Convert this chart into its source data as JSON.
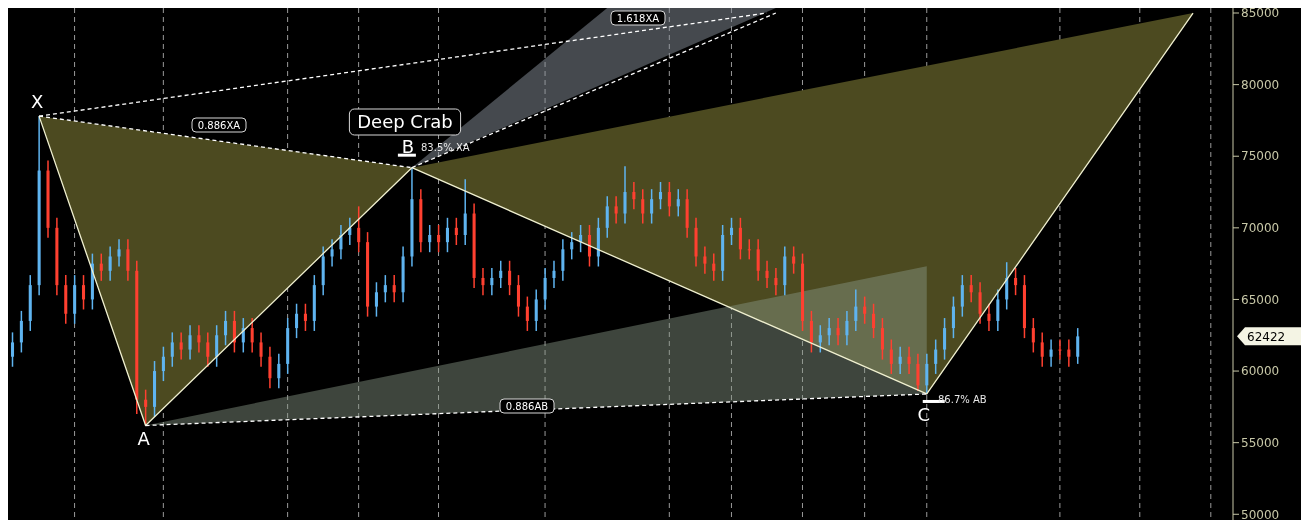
{
  "chart_data": {
    "type": "candlestick",
    "categories": [
      null,
      null,
      null,
      null,
      null,
      null,
      null,
      null,
      null,
      null,
      null,
      null,
      null,
      null,
      null,
      null,
      null,
      null,
      null,
      null,
      null,
      null,
      null,
      null,
      null,
      null,
      null,
      null,
      null,
      null,
      null,
      null,
      null,
      null,
      null,
      null,
      null,
      null,
      null,
      null,
      null,
      null,
      null,
      null,
      null,
      null,
      null,
      null,
      null,
      null,
      null,
      null,
      null,
      null,
      null,
      null,
      null,
      null,
      null,
      null,
      null,
      null,
      null,
      null,
      null,
      null,
      null,
      null,
      null,
      null,
      null,
      null,
      null,
      null,
      null,
      null,
      null,
      null,
      null,
      null,
      null,
      null,
      null,
      null,
      null,
      null,
      null,
      null,
      null,
      null,
      null,
      null,
      null,
      null,
      null,
      null,
      null,
      null,
      null,
      null,
      null,
      null,
      null,
      null,
      null,
      null,
      null,
      null,
      null,
      null,
      null,
      null,
      null,
      null,
      null,
      null,
      null,
      null,
      null,
      null,
      null,
      null,
      null,
      null,
      null,
      null,
      null,
      null,
      null,
      null,
      null,
      null,
      null,
      null,
      null,
      null,
      null,
      null
    ],
    "ohlc": [
      [
        61000,
        62700,
        60300,
        62000
      ],
      [
        62000,
        64200,
        61300,
        63500
      ],
      [
        63500,
        66700,
        62800,
        66000
      ],
      [
        66000,
        77800,
        65300,
        74000
      ],
      [
        74000,
        74700,
        69300,
        70000
      ],
      [
        70000,
        70700,
        65300,
        66000
      ],
      [
        66000,
        66700,
        63300,
        64000
      ],
      [
        64000,
        66700,
        63300,
        66000
      ],
      [
        66000,
        66700,
        64300,
        65000
      ],
      [
        65000,
        68200,
        64300,
        67500
      ],
      [
        67500,
        68200,
        66300,
        67000
      ],
      [
        67000,
        68700,
        66300,
        68000
      ],
      [
        68000,
        69200,
        67300,
        68500
      ],
      [
        68500,
        69200,
        66300,
        67000
      ],
      [
        67000,
        67700,
        57000,
        58000
      ],
      [
        58000,
        58700,
        56200,
        57500
      ],
      [
        57500,
        60700,
        56800,
        60000
      ],
      [
        60000,
        61700,
        59300,
        61000
      ],
      [
        61000,
        62700,
        60300,
        62000
      ],
      [
        62000,
        62700,
        60800,
        61500
      ],
      [
        61500,
        63200,
        60800,
        62500
      ],
      [
        62500,
        63200,
        61300,
        62000
      ],
      [
        62000,
        62700,
        60300,
        61000
      ],
      [
        61000,
        63200,
        60300,
        62500
      ],
      [
        62500,
        64200,
        61800,
        63500
      ],
      [
        63500,
        64200,
        61300,
        62000
      ],
      [
        62000,
        63700,
        61300,
        63000
      ],
      [
        63000,
        63700,
        61300,
        62000
      ],
      [
        62000,
        62700,
        60300,
        61000
      ],
      [
        61000,
        61700,
        58800,
        59500
      ],
      [
        59500,
        61200,
        58800,
        60500
      ],
      [
        60500,
        63700,
        59800,
        63000
      ],
      [
        63000,
        64700,
        62300,
        64000
      ],
      [
        64000,
        64700,
        62800,
        63500
      ],
      [
        63500,
        66700,
        62800,
        66000
      ],
      [
        66000,
        68700,
        65300,
        68000
      ],
      [
        68000,
        69200,
        67300,
        68500
      ],
      [
        68500,
        70200,
        67800,
        69500
      ],
      [
        69500,
        70700,
        68800,
        70000
      ],
      [
        70000,
        71500,
        68300,
        69000
      ],
      [
        69000,
        69700,
        63800,
        64500
      ],
      [
        64500,
        66200,
        63800,
        65500
      ],
      [
        65500,
        66700,
        64800,
        66000
      ],
      [
        66000,
        66700,
        64800,
        65500
      ],
      [
        65500,
        68700,
        64800,
        68000
      ],
      [
        68000,
        74200,
        67300,
        72000
      ],
      [
        72000,
        72700,
        68300,
        69000
      ],
      [
        69000,
        70200,
        68300,
        69500
      ],
      [
        69500,
        70200,
        68300,
        69000
      ],
      [
        69000,
        70700,
        68300,
        70000
      ],
      [
        70000,
        70700,
        68800,
        69500
      ],
      [
        69500,
        73400,
        68800,
        71000
      ],
      [
        71000,
        71700,
        65800,
        66500
      ],
      [
        66500,
        67200,
        65300,
        66000
      ],
      [
        66000,
        67200,
        65300,
        66500
      ],
      [
        66500,
        67700,
        65800,
        67000
      ],
      [
        67000,
        67700,
        65300,
        66000
      ],
      [
        66000,
        66700,
        63800,
        64500
      ],
      [
        64500,
        65200,
        62800,
        63500
      ],
      [
        63500,
        65700,
        62800,
        65000
      ],
      [
        65000,
        67200,
        64300,
        66500
      ],
      [
        66500,
        67700,
        65800,
        67000
      ],
      [
        67000,
        69200,
        66300,
        68500
      ],
      [
        68500,
        69700,
        67800,
        69000
      ],
      [
        69000,
        70200,
        68300,
        69500
      ],
      [
        69500,
        70200,
        67300,
        68000
      ],
      [
        68000,
        70700,
        67300,
        70000
      ],
      [
        70000,
        72200,
        69300,
        71500
      ],
      [
        71500,
        72200,
        70300,
        71000
      ],
      [
        71000,
        74300,
        70300,
        72500
      ],
      [
        72500,
        73200,
        71300,
        72000
      ],
      [
        72000,
        72700,
        70300,
        71000
      ],
      [
        71000,
        72700,
        70300,
        72000
      ],
      [
        72000,
        73200,
        71300,
        72500
      ],
      [
        72500,
        73200,
        70800,
        71500
      ],
      [
        71500,
        72700,
        70800,
        72000
      ],
      [
        72000,
        72700,
        69300,
        70000
      ],
      [
        70000,
        70700,
        67300,
        68000
      ],
      [
        68000,
        68700,
        66800,
        67500
      ],
      [
        67500,
        68200,
        66300,
        67000
      ],
      [
        67000,
        70200,
        66300,
        69500
      ],
      [
        69500,
        70700,
        68800,
        70000
      ],
      [
        70000,
        70700,
        67800,
        68500
      ],
      [
        68500,
        69200,
        67800,
        68500
      ],
      [
        68500,
        69200,
        66300,
        67000
      ],
      [
        67000,
        67700,
        65800,
        66500
      ],
      [
        66500,
        67200,
        65300,
        66000
      ],
      [
        66000,
        68700,
        65300,
        68000
      ],
      [
        68000,
        68700,
        66800,
        67500
      ],
      [
        67500,
        68200,
        62800,
        63500
      ],
      [
        63500,
        64200,
        61300,
        62000
      ],
      [
        62000,
        63200,
        61300,
        62500
      ],
      [
        62500,
        63700,
        61800,
        63000
      ],
      [
        63000,
        63700,
        61800,
        62500
      ],
      [
        62500,
        64200,
        61800,
        63500
      ],
      [
        63500,
        65700,
        62800,
        64500
      ],
      [
        64500,
        65200,
        63300,
        64000
      ],
      [
        64000,
        64700,
        62300,
        63000
      ],
      [
        63000,
        63700,
        60800,
        61500
      ],
      [
        61500,
        62200,
        59800,
        60500
      ],
      [
        60500,
        61700,
        59800,
        61000
      ],
      [
        61000,
        61700,
        59800,
        60500
      ],
      [
        60500,
        61200,
        58600,
        59000
      ],
      [
        59000,
        61200,
        58400,
        60500
      ],
      [
        60500,
        62200,
        59800,
        61500
      ],
      [
        61500,
        63700,
        60800,
        63000
      ],
      [
        63000,
        65200,
        62300,
        64500
      ],
      [
        64500,
        66700,
        63800,
        66000
      ],
      [
        66000,
        66700,
        64800,
        65500
      ],
      [
        65500,
        66200,
        63300,
        64000
      ],
      [
        64000,
        64700,
        62800,
        63500
      ],
      [
        63500,
        65700,
        62800,
        65000
      ],
      [
        65000,
        67600,
        64300,
        66500
      ],
      [
        66500,
        67200,
        65300,
        66000
      ],
      [
        66000,
        66700,
        62300,
        63000
      ],
      [
        63000,
        63700,
        61300,
        62000
      ],
      [
        62000,
        62700,
        60300,
        61000
      ],
      [
        61000,
        62200,
        60300,
        61500
      ],
      [
        61500,
        62200,
        60800,
        61500
      ],
      [
        61500,
        62200,
        60300,
        61000
      ],
      [
        61000,
        63000,
        60500,
        62422
      ],
      null,
      null,
      null,
      null,
      null,
      null,
      null,
      null,
      null,
      null,
      null,
      null,
      null,
      null,
      null,
      null,
      null
    ],
    "colors": [
      "#5fb4f0",
      "#5fb4f0",
      "#5fb4f0",
      "#5fb4f0",
      "#ff4030",
      "#ff4030",
      "#ff4030",
      "#5fb4f0",
      "#ff4030",
      "#5fb4f0",
      "#ff4030",
      "#5fb4f0",
      "#5fb4f0",
      "#ff4030",
      "#ff4030",
      "#ff4030",
      "#5fb4f0",
      "#5fb4f0",
      "#5fb4f0",
      "#ff4030",
      "#5fb4f0",
      "#ff4030",
      "#ff4030",
      "#5fb4f0",
      "#5fb4f0",
      "#ff4030",
      "#5fb4f0",
      "#ff4030",
      "#ff4030",
      "#ff4030",
      "#5fb4f0",
      "#5fb4f0",
      "#5fb4f0",
      "#ff4030",
      "#5fb4f0",
      "#5fb4f0",
      "#5fb4f0",
      "#5fb4f0",
      "#5fb4f0",
      "#ff4030",
      "#ff4030",
      "#5fb4f0",
      "#5fb4f0",
      "#ff4030",
      "#5fb4f0",
      "#5fb4f0",
      "#ff4030",
      "#5fb4f0",
      "#ff4030",
      "#5fb4f0",
      "#ff4030",
      "#5fb4f0",
      "#ff4030",
      "#ff4030",
      "#5fb4f0",
      "#5fb4f0",
      "#ff4030",
      "#ff4030",
      "#ff4030",
      "#5fb4f0",
      "#5fb4f0",
      "#5fb4f0",
      "#5fb4f0",
      "#5fb4f0",
      "#5fb4f0",
      "#ff4030",
      "#5fb4f0",
      "#5fb4f0",
      "#ff4030",
      "#5fb4f0",
      "#ff4030",
      "#ff4030",
      "#5fb4f0",
      "#5fb4f0",
      "#ff4030",
      "#5fb4f0",
      "#ff4030",
      "#ff4030",
      "#ff4030",
      "#ff4030",
      "#5fb4f0",
      "#5fb4f0",
      "#ff4030",
      "#ff4030",
      "#ff4030",
      "#ff4030",
      "#ff4030",
      "#5fb4f0",
      "#ff4030",
      "#ff4030",
      "#ff4030",
      "#5fb4f0",
      "#5fb4f0",
      "#ff4030",
      "#5fb4f0",
      "#5fb4f0",
      "#ff4030",
      "#ff4030",
      "#ff4030",
      "#ff4030",
      "#5fb4f0",
      "#ff4030",
      "#ff4030",
      "#5fb4f0",
      "#5fb4f0",
      "#5fb4f0",
      "#5fb4f0",
      "#5fb4f0",
      "#ff4030",
      "#ff4030",
      "#ff4030",
      "#5fb4f0",
      "#5fb4f0",
      "#ff4030",
      "#ff4030",
      "#ff4030",
      "#ff4030",
      "#5fb4f0",
      "#ff4030",
      "#ff4030",
      "#5fb4f0",
      null,
      null,
      null,
      null,
      null,
      null,
      null,
      null,
      null,
      null,
      null,
      null,
      null,
      null,
      null,
      null,
      null
    ],
    "series": [
      {
        "type": "line",
        "color": "#f0f0d0",
        "line_style": "solid",
        "values": [
          null,
          null,
          null,
          77800,
          null,
          null,
          null,
          null,
          null,
          null,
          null,
          null,
          null,
          null,
          null,
          56200,
          null,
          null,
          null,
          null,
          null,
          null,
          null,
          null,
          null,
          null,
          null,
          null,
          null,
          null,
          null,
          null,
          null,
          null,
          null,
          null,
          null,
          null,
          null,
          null,
          null,
          null,
          null,
          null,
          null,
          74200,
          null,
          null,
          null,
          null,
          null,
          null,
          null,
          null,
          null,
          null,
          null,
          null,
          null,
          null,
          null,
          null,
          null,
          null,
          null,
          null,
          null,
          null,
          null,
          null,
          null,
          null,
          null,
          null,
          null,
          null,
          null,
          null,
          null,
          null,
          null,
          null,
          null,
          null,
          null,
          null,
          null,
          null,
          null,
          null,
          null,
          null,
          null,
          null,
          null,
          null,
          null,
          null,
          null,
          null,
          null,
          null,
          null,
          58400,
          null,
          null,
          null,
          null,
          null,
          null,
          null,
          null,
          null,
          null,
          null,
          null,
          null,
          null,
          null,
          null,
          null,
          null,
          null,
          null,
          null,
          null,
          null,
          null,
          null,
          null,
          null,
          null,
          null,
          85000,
          null,
          null,
          null,
          null
        ]
      },
      {
        "type": "line",
        "color": "#ffffff",
        "line_style": "dashed",
        "values": [
          null,
          null,
          null,
          77800,
          null,
          null,
          null,
          null,
          null,
          null,
          null,
          null,
          null,
          null,
          null,
          null,
          null,
          null,
          null,
          null,
          null,
          null,
          null,
          null,
          null,
          null,
          null,
          null,
          null,
          null,
          null,
          null,
          null,
          null,
          null,
          null,
          null,
          null,
          null,
          null,
          null,
          null,
          null,
          null,
          null,
          74200,
          null,
          null,
          null,
          null,
          null,
          null,
          null,
          null,
          null,
          null,
          null,
          null,
          null,
          null,
          null,
          null,
          null,
          null,
          null,
          null,
          null,
          null,
          null,
          null,
          null,
          null,
          null,
          null,
          null,
          null,
          null,
          null,
          null,
          null,
          null,
          null,
          null,
          null,
          null,
          null,
          null,
          null,
          null,
          null,
          null,
          null,
          null,
          null,
          null,
          null,
          null,
          null,
          null,
          null,
          null,
          null,
          null,
          null,
          null,
          null,
          null,
          null,
          null,
          null,
          null,
          null,
          null,
          null,
          null,
          null,
          null,
          null,
          null,
          null,
          null,
          null,
          null,
          null,
          null,
          null,
          null,
          null,
          null,
          null,
          null,
          null,
          null,
          null,
          null,
          null,
          null,
          null
        ]
      },
      {
        "type": "line",
        "color": "#ffffff",
        "line_style": "dashed",
        "values": [
          null,
          null,
          null,
          null,
          null,
          null,
          null,
          null,
          null,
          null,
          null,
          null,
          null,
          null,
          null,
          56200,
          null,
          null,
          null,
          null,
          null,
          null,
          null,
          null,
          null,
          null,
          null,
          null,
          null,
          null,
          null,
          null,
          null,
          null,
          null,
          null,
          null,
          null,
          null,
          null,
          null,
          null,
          null,
          null,
          null,
          null,
          null,
          null,
          null,
          null,
          null,
          null,
          null,
          null,
          null,
          null,
          null,
          null,
          null,
          null,
          null,
          null,
          null,
          null,
          null,
          null,
          null,
          null,
          null,
          null,
          null,
          null,
          null,
          null,
          null,
          null,
          null,
          null,
          null,
          null,
          null,
          null,
          null,
          null,
          null,
          null,
          null,
          null,
          null,
          null,
          null,
          null,
          null,
          null,
          null,
          null,
          null,
          null,
          null,
          null,
          null,
          null,
          null,
          58400,
          null,
          null,
          null,
          null,
          null,
          null,
          null,
          null,
          null,
          null,
          null,
          null,
          null,
          null,
          null,
          null,
          null,
          null,
          null,
          null,
          null,
          null,
          null,
          null,
          null,
          null,
          null,
          null,
          null,
          null,
          null,
          null,
          null,
          null
        ]
      },
      {
        "type": "line",
        "color": "#ffffff",
        "line_style": "dashed",
        "values": [
          null,
          null,
          null,
          77800,
          null,
          null,
          null,
          null,
          null,
          null,
          null,
          null,
          null,
          null,
          null,
          null,
          null,
          null,
          null,
          null,
          null,
          null,
          null,
          null,
          null,
          null,
          null,
          null,
          null,
          null,
          null,
          null,
          null,
          null,
          null,
          null,
          null,
          null,
          null,
          null,
          null,
          null,
          null,
          null,
          null,
          null,
          null,
          null,
          null,
          null,
          null,
          null,
          null,
          null,
          null,
          null,
          null,
          null,
          null,
          null,
          null,
          null,
          null,
          null,
          null,
          null,
          null,
          null,
          null,
          null,
          null,
          null,
          null,
          null,
          null,
          null,
          null,
          null,
          null,
          null,
          null,
          null,
          null,
          null,
          null,
          85000,
          null,
          null,
          null,
          null,
          null,
          null,
          null,
          null,
          null,
          null,
          null,
          null,
          null,
          null,
          null,
          null,
          null,
          null,
          null,
          null,
          null,
          null,
          null,
          null,
          null,
          null,
          null,
          null,
          null,
          null,
          null,
          null,
          null,
          null,
          null,
          null,
          null,
          null,
          null,
          null,
          null,
          null,
          null,
          null,
          null,
          null,
          null,
          null,
          null,
          null,
          null,
          null
        ]
      },
      {
        "type": "line",
        "color": "#ffffff",
        "line_style": "dashed",
        "values": [
          null,
          null,
          null,
          null,
          null,
          null,
          null,
          null,
          null,
          null,
          null,
          null,
          null,
          null,
          null,
          null,
          null,
          null,
          null,
          null,
          null,
          null,
          null,
          null,
          null,
          null,
          null,
          null,
          null,
          null,
          null,
          null,
          null,
          null,
          null,
          null,
          null,
          null,
          null,
          null,
          null,
          null,
          null,
          null,
          null,
          74200,
          null,
          null,
          null,
          null,
          null,
          null,
          null,
          null,
          null,
          null,
          null,
          null,
          null,
          null,
          null,
          null,
          null,
          null,
          null,
          null,
          null,
          null,
          null,
          null,
          null,
          null,
          null,
          null,
          null,
          null,
          null,
          null,
          null,
          null,
          null,
          null,
          null,
          null,
          null,
          null,
          85000,
          null,
          null,
          null,
          null,
          null,
          null,
          null,
          null,
          null,
          null,
          null,
          null,
          null,
          null,
          null,
          null,
          null,
          null,
          null,
          null,
          null,
          null,
          null,
          null,
          null,
          null,
          null,
          null,
          null,
          null,
          null,
          null,
          null,
          null,
          null,
          null,
          null,
          null,
          null,
          null,
          null,
          null,
          null,
          null,
          null,
          null,
          null,
          null,
          null,
          null,
          null
        ]
      }
    ],
    "ylim": [
      49600,
      85350
    ],
    "yticks": [
      50000,
      55000,
      60000,
      65000,
      70000,
      75000,
      80000,
      85000
    ],
    "annotations": [
      "X",
      "A",
      "B",
      "C",
      "Deep Crab",
      "0.886XA",
      "1.618XA",
      "0.886AB",
      "83.5% XA",
      "86.7% AB",
      "62422"
    ]
  }
}
